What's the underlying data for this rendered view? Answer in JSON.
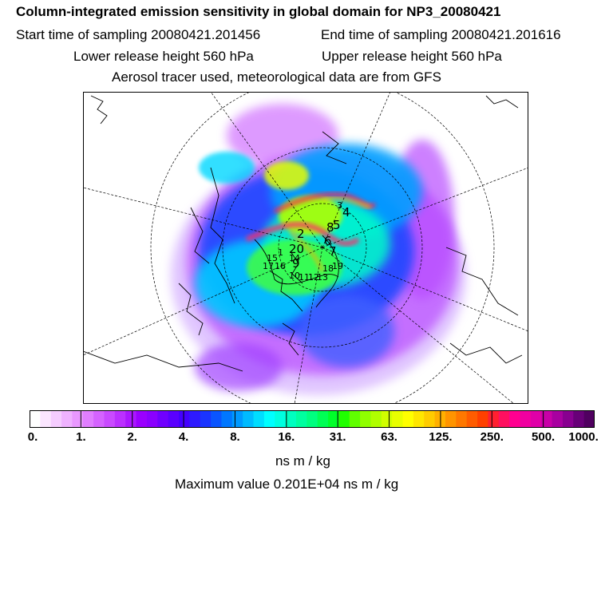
{
  "header": {
    "title": "Column-integrated emission sensitivity in global domain for NP3_20080421",
    "start_time": "Start time of sampling 20080421.201456",
    "end_time": "End time of sampling 20080421.201616",
    "lower_release": "Lower release height  560 hPa",
    "upper_release": "Upper release height  560 hPa",
    "tracer_info": "Aerosol tracer used, meteorological data are from GFS"
  },
  "map": {
    "projection": "polar stereographic (north)",
    "release_labels": [
      "2",
      "20",
      "6",
      "7",
      "4",
      "5",
      "8",
      "9",
      "10",
      "11",
      "12",
      "13",
      "14",
      "15",
      "16",
      "17",
      "18",
      "19",
      "1",
      "3"
    ]
  },
  "colorbar": {
    "colors": [
      "#ffffff",
      "#fbe6ff",
      "#f5ccff",
      "#efb2ff",
      "#e998ff",
      "#e07eff",
      "#d563ff",
      "#c94aff",
      "#bb30ff",
      "#ab17ff",
      "#9a00ff",
      "#8a00ff",
      "#7000ff",
      "#5a00ff",
      "#4400ff",
      "#2e1aff",
      "#1a34ff",
      "#0a55ff",
      "#0077ff",
      "#0099ff",
      "#00bbff",
      "#00ddff",
      "#00ffff",
      "#00ffe0",
      "#00ffc0",
      "#00ffa0",
      "#00ff80",
      "#00ff55",
      "#00ff2a",
      "#20ff00",
      "#60ff00",
      "#90ff00",
      "#b0ff00",
      "#d0ff00",
      "#e8ff00",
      "#ffff00",
      "#ffe600",
      "#ffcc00",
      "#ffb000",
      "#ff9400",
      "#ff7800",
      "#ff5c00",
      "#ff4000",
      "#ff2030",
      "#ff1060",
      "#ff0090",
      "#f000a0",
      "#e000a8",
      "#c800a8",
      "#a800a0",
      "#880090",
      "#680078",
      "#500060"
    ],
    "tick_labels": [
      "0.",
      "1.",
      "2.",
      "4.",
      "8.",
      "16.",
      "31.",
      "63.",
      "125.",
      "250.",
      "500.",
      "1000."
    ],
    "units": "ns m / kg",
    "max_value": "Maximum value  0.201E+04 ns m / kg"
  }
}
